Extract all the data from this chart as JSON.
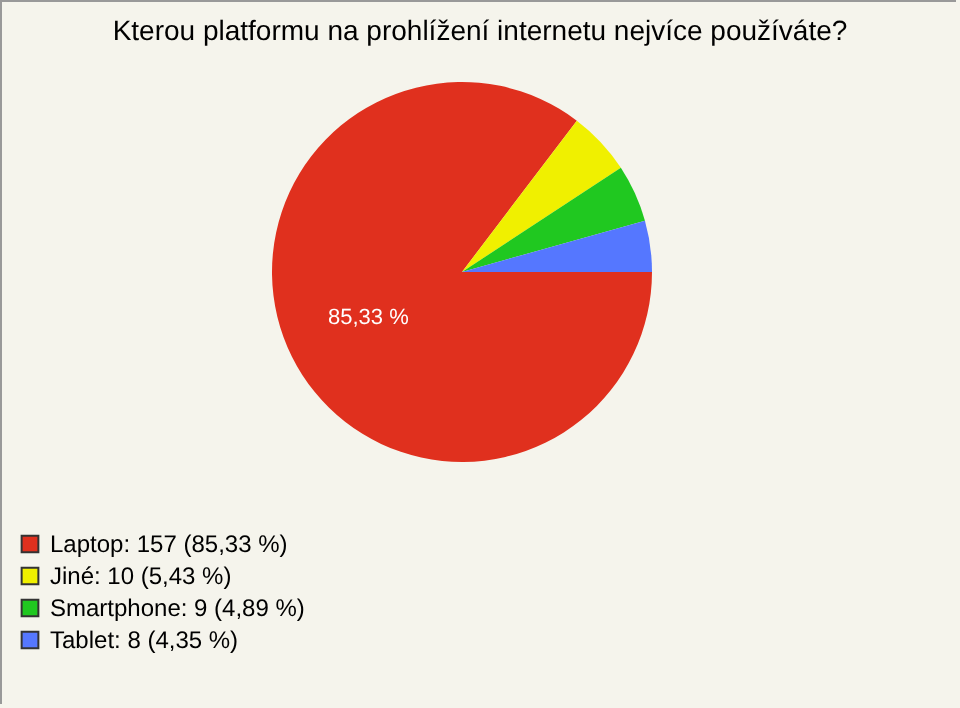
{
  "chart_data": {
    "type": "pie",
    "title": "Kterou platformu na prohlížení internetu nejvíce používáte?",
    "categories": [
      "Laptop: 157 (85,33 %)",
      "Jiné: 10 (5,43 %)",
      "Smartphone: 9 (4,89 %)",
      "Tablet: 8 (4,35 %)"
    ],
    "values": [
      85.33,
      5.43,
      4.89,
      4.35
    ],
    "colors": [
      "#e0301e",
      "#f0f000",
      "#20c820",
      "#5577ff"
    ],
    "value_labels": [
      "85,33 %",
      null,
      null,
      null
    ],
    "legend": "bottom left"
  }
}
